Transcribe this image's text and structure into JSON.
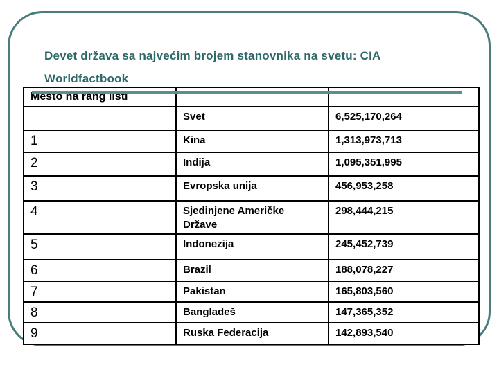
{
  "slide": {
    "title_line1": "Devet država sa najvećim brojem stanovnika na svetu: CIA",
    "title_line2": "Worldfactbook",
    "colors": {
      "title_text": "#2d6868",
      "frame_border": "#4a7c7c",
      "title_rule": "#5b8e8e",
      "table_border": "#000000",
      "background": "#ffffff"
    }
  },
  "table": {
    "header": "Mesto na rang listi",
    "rows": [
      {
        "rank": "",
        "name": "Svet",
        "value": "6,525,170,264"
      },
      {
        "rank": "1",
        "name": "Kina",
        "value": "1,313,973,713"
      },
      {
        "rank": "2",
        "name": "Indija",
        "value": "1,095,351,995"
      },
      {
        "rank": "3",
        "name": "Evropska unija",
        "value": "456,953,258"
      },
      {
        "rank": "4",
        "name": "Sjedinjene Američke Države",
        "value": "298,444,215"
      },
      {
        "rank": "5",
        "name": "Indonezija",
        "value": "245,452,739"
      },
      {
        "rank": "6",
        "name": "Brazil",
        "value": "188,078,227"
      },
      {
        "rank": "7",
        "name": "Pakistan",
        "value": "165,803,560"
      },
      {
        "rank": "8",
        "name": "Bangladeš",
        "value": "147,365,352"
      },
      {
        "rank": "9",
        "name": "Ruska Federacija",
        "value": "142,893,540"
      }
    ]
  }
}
